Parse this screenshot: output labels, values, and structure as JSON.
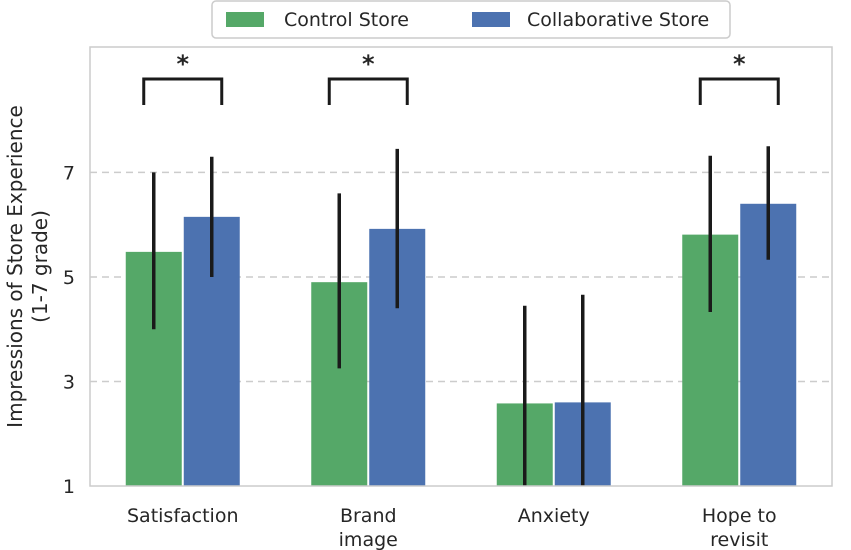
{
  "chart_data": {
    "type": "bar",
    "title": "",
    "xlabel": "",
    "ylabel": [
      "Impressions of Store Experience",
      "(1-7 grade)"
    ],
    "categories": [
      [
        "Satisfaction"
      ],
      [
        "Brand",
        "image"
      ],
      [
        "Anxiety"
      ],
      [
        "Hope to",
        "revisit"
      ]
    ],
    "series": [
      {
        "name": "Control Store",
        "color": "#55a868",
        "values": [
          5.48,
          4.9,
          2.58,
          5.81
        ],
        "err_low": [
          4.0,
          3.25,
          1.0,
          4.33
        ],
        "err_high": [
          7.0,
          6.6,
          4.45,
          7.32
        ]
      },
      {
        "name": "Collaborative Store",
        "color": "#4c72b0",
        "values": [
          6.15,
          5.92,
          2.6,
          6.4
        ],
        "err_low": [
          5.0,
          4.4,
          1.0,
          5.33
        ],
        "err_high": [
          7.3,
          7.45,
          4.66,
          7.5
        ]
      }
    ],
    "ylim": [
      1,
      9.4
    ],
    "yticks": [
      1,
      3,
      5,
      7
    ],
    "grid": true,
    "legend_position": "top-center",
    "significance": [
      {
        "category_index": 0,
        "label": "*"
      },
      {
        "category_index": 1,
        "label": "*"
      },
      {
        "category_index": 3,
        "label": "*"
      }
    ]
  }
}
